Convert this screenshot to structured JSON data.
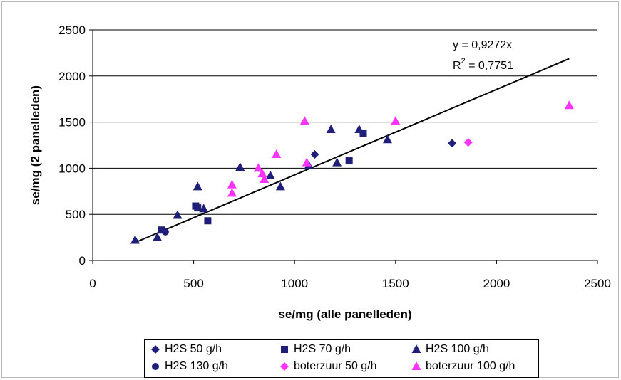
{
  "chart_data": {
    "type": "scatter",
    "xlabel": "se/mg (alle panelleden)",
    "ylabel": "se/mg (2 panelleden)",
    "xlim": [
      0,
      2500
    ],
    "ylim": [
      0,
      2500
    ],
    "xticks": [
      0,
      500,
      1000,
      1500,
      2000,
      2500
    ],
    "yticks": [
      0,
      500,
      1000,
      1500,
      2000,
      2500
    ],
    "grid": "horizontal",
    "legend_position": "bottom",
    "trendline": {
      "equation": "y = 0,9272x",
      "r2_prefix": "R",
      "r2_sup": "2",
      "r2_suffix": " = 0,7751",
      "slope": 0.9272,
      "x_range": [
        210,
        2360
      ]
    },
    "series": [
      {
        "name": "H2S 50 g/h",
        "marker": "diamond",
        "color": "#1f1f7a",
        "points": [
          [
            1100,
            1150
          ],
          [
            1780,
            1270
          ]
        ]
      },
      {
        "name": "H2S 70 g/h",
        "marker": "square",
        "color": "#1f1f7a",
        "points": [
          [
            340,
            330
          ],
          [
            510,
            590
          ],
          [
            520,
            570
          ],
          [
            570,
            430
          ],
          [
            1270,
            1080
          ],
          [
            1340,
            1380
          ]
        ]
      },
      {
        "name": "H2S 100 g/h",
        "marker": "triangle",
        "color": "#1f1f7a",
        "points": [
          [
            210,
            220
          ],
          [
            320,
            250
          ],
          [
            420,
            490
          ],
          [
            520,
            800
          ],
          [
            550,
            560
          ],
          [
            730,
            1010
          ],
          [
            880,
            920
          ],
          [
            930,
            800
          ],
          [
            1070,
            1030
          ],
          [
            1180,
            1420
          ],
          [
            1210,
            1060
          ],
          [
            1320,
            1420
          ],
          [
            1460,
            1310
          ]
        ]
      },
      {
        "name": "H2S 130 g/h",
        "marker": "circle",
        "color": "#1f1f7a",
        "points": [
          [
            360,
            310
          ]
        ]
      },
      {
        "name": "boterzuur 50 g/h",
        "marker": "diamond",
        "color": "#ff33ff",
        "points": [
          [
            1860,
            1280
          ]
        ]
      },
      {
        "name": "boterzuur 100 g/h",
        "marker": "triangle",
        "color": "#ff33ff",
        "points": [
          [
            690,
            730
          ],
          [
            690,
            820
          ],
          [
            820,
            1000
          ],
          [
            840,
            940
          ],
          [
            850,
            880
          ],
          [
            910,
            1150
          ],
          [
            1050,
            1510
          ],
          [
            1060,
            1060
          ],
          [
            1500,
            1510
          ],
          [
            2360,
            1680
          ]
        ]
      }
    ]
  }
}
